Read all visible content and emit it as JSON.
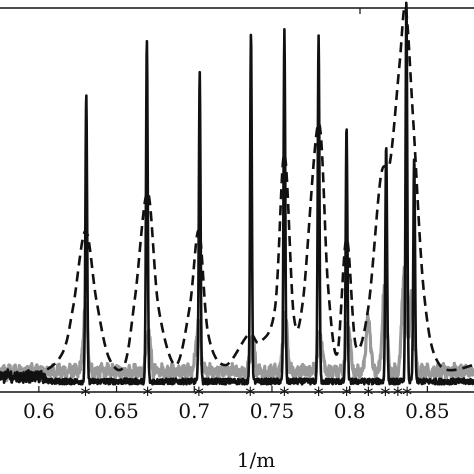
{
  "chart_data": {
    "type": "line",
    "title": "",
    "xlabel": "1/m",
    "ylabel": "",
    "xlim": [
      0.575,
      0.88
    ],
    "ylim": [
      0,
      1.0
    ],
    "x_ticks": [
      0.6,
      0.65,
      0.7,
      0.75,
      0.8,
      0.85
    ],
    "x_tick_labels": [
      "0.6",
      "0.65",
      "0.7",
      "0.75",
      "0.8",
      "0.85"
    ],
    "grid": false,
    "legend": "none",
    "series": [
      {
        "style": "solid",
        "color": "#111111",
        "peaks": [
          {
            "x": 0.6305,
            "y": 0.75
          },
          {
            "x": 0.6695,
            "y": 0.89
          },
          {
            "x": 0.7035,
            "y": 0.8
          },
          {
            "x": 0.7365,
            "y": 0.91
          },
          {
            "x": 0.758,
            "y": 0.91
          },
          {
            "x": 0.78,
            "y": 0.9
          },
          {
            "x": 0.798,
            "y": 0.66
          },
          {
            "x": 0.8235,
            "y": 0.62
          },
          {
            "x": 0.8365,
            "y": 0.99
          },
          {
            "x": 0.8415,
            "y": 0.58
          }
        ]
      },
      {
        "style": "dashed",
        "color": "#111111",
        "points": [
          {
            "x": 0.575,
            "y": 0.05
          },
          {
            "x": 0.6,
            "y": 0.05
          },
          {
            "x": 0.615,
            "y": 0.1
          },
          {
            "x": 0.622,
            "y": 0.22
          },
          {
            "x": 0.63,
            "y": 0.42
          },
          {
            "x": 0.637,
            "y": 0.24
          },
          {
            "x": 0.645,
            "y": 0.09
          },
          {
            "x": 0.655,
            "y": 0.07
          },
          {
            "x": 0.662,
            "y": 0.25
          },
          {
            "x": 0.67,
            "y": 0.52
          },
          {
            "x": 0.677,
            "y": 0.22
          },
          {
            "x": 0.688,
            "y": 0.07
          },
          {
            "x": 0.697,
            "y": 0.22
          },
          {
            "x": 0.703,
            "y": 0.42
          },
          {
            "x": 0.709,
            "y": 0.15
          },
          {
            "x": 0.72,
            "y": 0.07
          },
          {
            "x": 0.735,
            "y": 0.15
          },
          {
            "x": 0.742,
            "y": 0.13
          },
          {
            "x": 0.752,
            "y": 0.22
          },
          {
            "x": 0.758,
            "y": 0.62
          },
          {
            "x": 0.764,
            "y": 0.2
          },
          {
            "x": 0.77,
            "y": 0.24
          },
          {
            "x": 0.78,
            "y": 0.7
          },
          {
            "x": 0.786,
            "y": 0.28
          },
          {
            "x": 0.792,
            "y": 0.1
          },
          {
            "x": 0.798,
            "y": 0.4
          },
          {
            "x": 0.804,
            "y": 0.12
          },
          {
            "x": 0.812,
            "y": 0.22
          },
          {
            "x": 0.82,
            "y": 0.56
          },
          {
            "x": 0.826,
            "y": 0.6
          },
          {
            "x": 0.832,
            "y": 0.85
          },
          {
            "x": 0.836,
            "y": 1.0
          },
          {
            "x": 0.841,
            "y": 0.7
          },
          {
            "x": 0.848,
            "y": 0.25
          },
          {
            "x": 0.858,
            "y": 0.07
          },
          {
            "x": 0.88,
            "y": 0.07
          }
        ]
      },
      {
        "style": "solid",
        "color": "#9a9a9a",
        "peaks": [
          {
            "x": 0.63,
            "y": 0.16
          },
          {
            "x": 0.6705,
            "y": 0.1
          },
          {
            "x": 0.7025,
            "y": 0.12
          },
          {
            "x": 0.7375,
            "y": 0.08
          },
          {
            "x": 0.7585,
            "y": 0.14
          },
          {
            "x": 0.781,
            "y": 0.1
          },
          {
            "x": 0.799,
            "y": 0.12
          },
          {
            "x": 0.812,
            "y": 0.14
          },
          {
            "x": 0.8225,
            "y": 0.22
          },
          {
            "x": 0.835,
            "y": 0.26
          },
          {
            "x": 0.84,
            "y": 0.2
          }
        ]
      }
    ],
    "markers": {
      "symbol": "*",
      "x": [
        0.63,
        0.67,
        0.703,
        0.736,
        0.758,
        0.78,
        0.798,
        0.812,
        0.823,
        0.831,
        0.837
      ]
    }
  }
}
